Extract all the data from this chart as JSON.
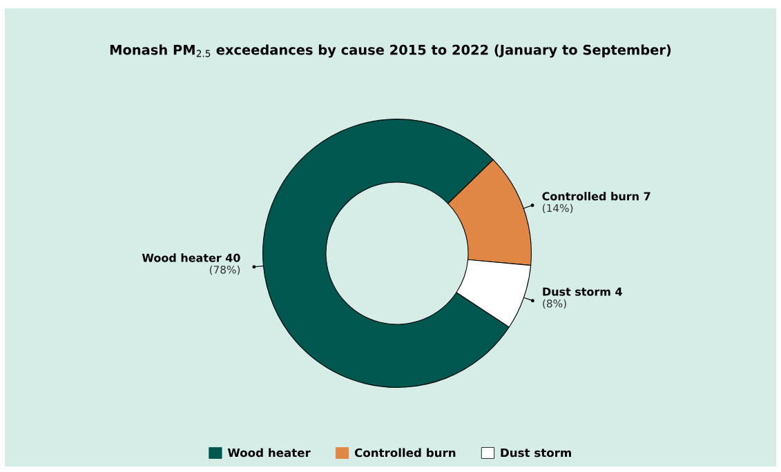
{
  "chart_data": {
    "type": "donut",
    "title": "Monash PM$_{2.5}$ exceedances by cause 2015 to 2022 (January to September)",
    "categories": [
      "Wood heater",
      "Controlled burn",
      "Dust storm"
    ],
    "values": [
      40,
      7,
      4
    ],
    "colors": [
      "#00574f",
      "#e08745",
      "#ffffff"
    ],
    "data_labels": true,
    "annotations": [
      {
        "text": "(78%)",
        "x": "Wood heater"
      },
      {
        "text": "(14%)",
        "x": "Controlled burn"
      },
      {
        "text": "(8%)",
        "x": "Dust storm"
      }
    ],
    "legend": "bottom"
  }
}
